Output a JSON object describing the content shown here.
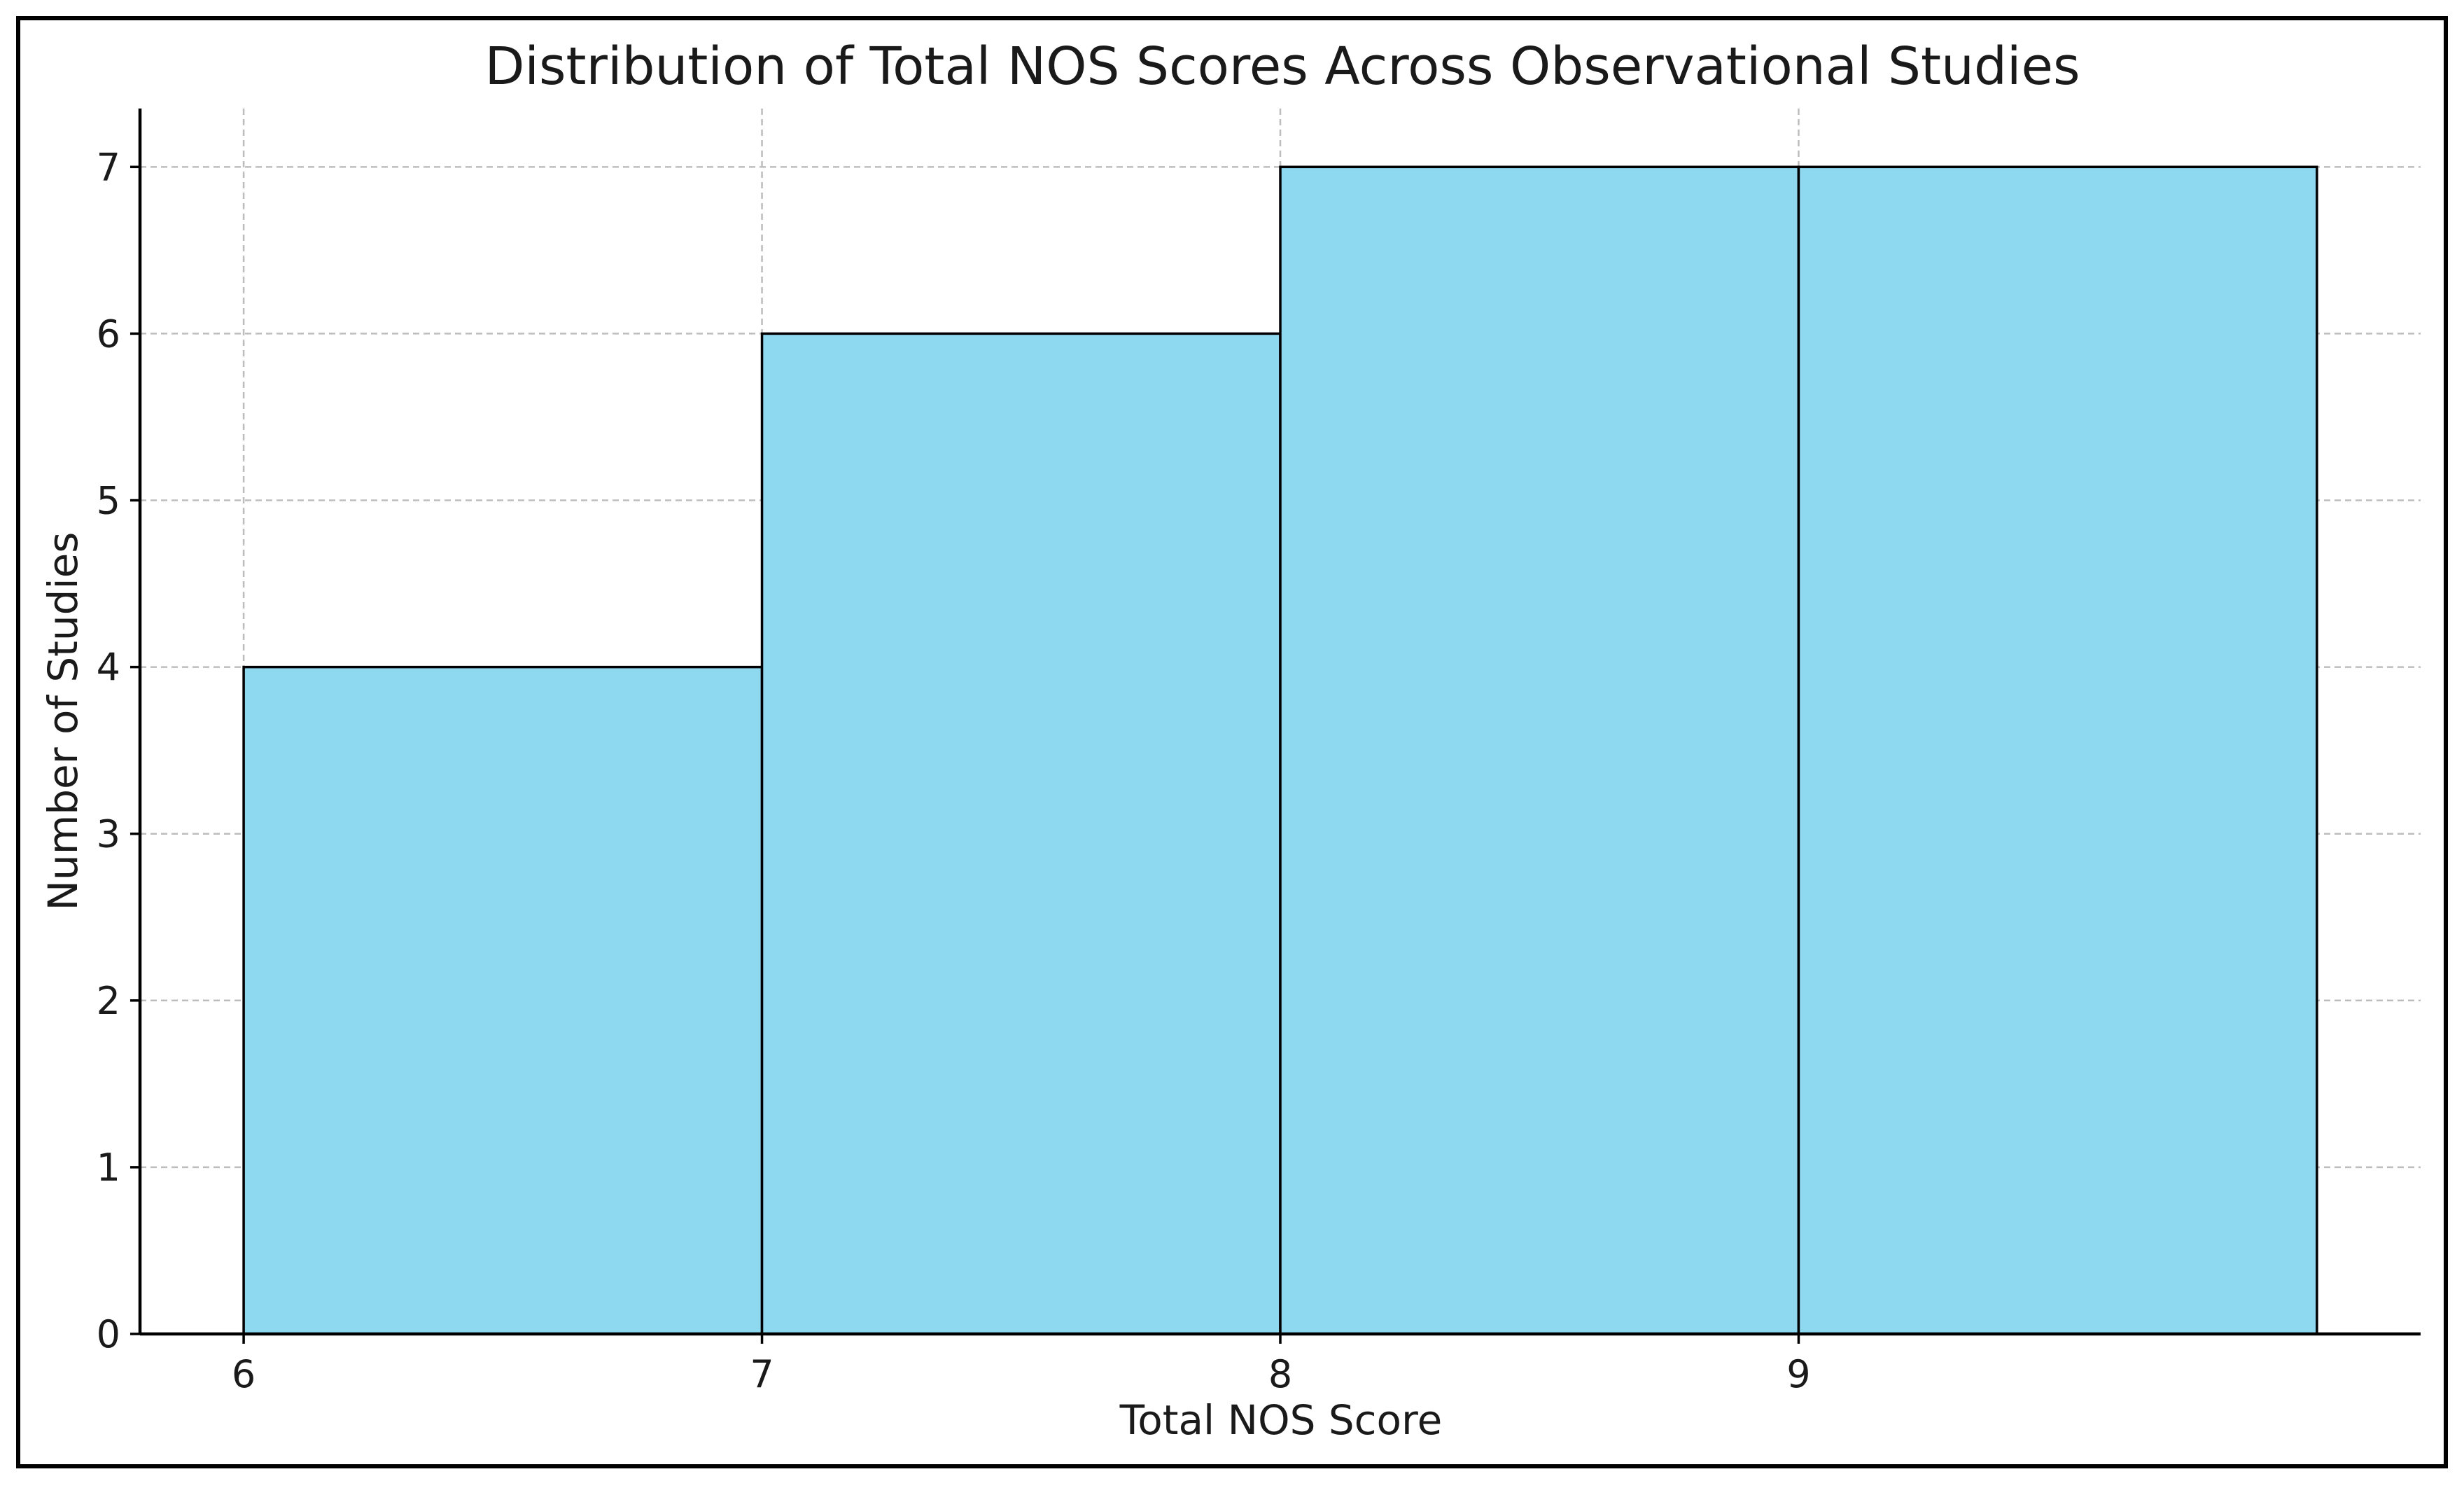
{
  "chart_data": {
    "type": "bar",
    "title": "Distribution of Total NOS Scores Across Observational Studies",
    "xlabel": "Total NOS Score",
    "ylabel": "Number of Studies",
    "bins": [
      {
        "start": 6,
        "end": 7,
        "count": 4
      },
      {
        "start": 7,
        "end": 8,
        "count": 6
      },
      {
        "start": 8,
        "end": 9,
        "count": 7
      },
      {
        "start": 9,
        "end": 10,
        "count": 7
      }
    ],
    "x_ticks": [
      6,
      7,
      8,
      9
    ],
    "y_ticks": [
      0,
      1,
      2,
      3,
      4,
      5,
      6,
      7
    ],
    "xlim": [
      5.8,
      10.2
    ],
    "ylim": [
      0,
      7.35
    ],
    "grid": true,
    "colors": {
      "bar_fill": "#8ed9ef",
      "bar_edge": "#000000",
      "grid": "#bdbdbd",
      "axis": "#000000",
      "frame": "#000000"
    }
  }
}
